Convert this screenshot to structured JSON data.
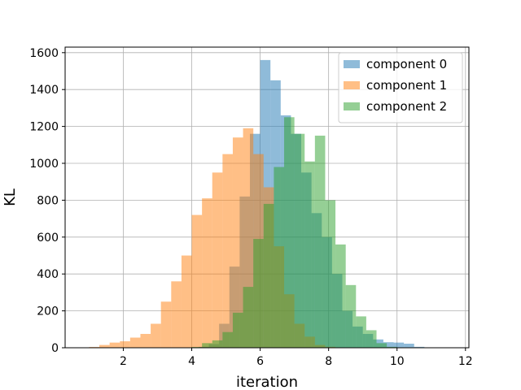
{
  "chart_data": {
    "type": "bar",
    "subtype": "histogram",
    "xlabel": "iteration",
    "ylabel": "KL",
    "xlim": [
      0.3,
      12.1
    ],
    "ylim": [
      0,
      1630
    ],
    "xticks": [
      2,
      4,
      6,
      8,
      10,
      12
    ],
    "yticks": [
      0,
      200,
      400,
      600,
      800,
      1000,
      1200,
      1400,
      1600
    ],
    "grid": true,
    "legend_position": "top-right",
    "series": [
      {
        "name": "component 0",
        "color": "#1f77b4",
        "opacity": 0.5,
        "bins": [
          [
            4.2,
            4.5,
            5
          ],
          [
            4.5,
            4.8,
            20
          ],
          [
            4.8,
            5.1,
            130
          ],
          [
            5.1,
            5.4,
            440
          ],
          [
            5.4,
            5.7,
            820
          ],
          [
            5.7,
            6.0,
            1160
          ],
          [
            6.0,
            6.3,
            1560
          ],
          [
            6.3,
            6.6,
            1450
          ],
          [
            6.6,
            6.9,
            1260
          ],
          [
            6.9,
            7.2,
            1160
          ],
          [
            7.2,
            7.5,
            950
          ],
          [
            7.5,
            7.8,
            730
          ],
          [
            7.8,
            8.1,
            600
          ],
          [
            8.1,
            8.4,
            400
          ],
          [
            8.4,
            8.7,
            200
          ],
          [
            8.7,
            9.0,
            115
          ],
          [
            9.0,
            9.3,
            75
          ],
          [
            9.3,
            9.6,
            45
          ],
          [
            9.6,
            9.9,
            30
          ],
          [
            9.9,
            10.2,
            28
          ],
          [
            10.2,
            10.5,
            22
          ],
          [
            10.5,
            10.8,
            5
          ]
        ]
      },
      {
        "name": "component 1",
        "color": "#ff7f0e",
        "opacity": 0.5,
        "bins": [
          [
            1.0,
            1.3,
            4
          ],
          [
            1.3,
            1.6,
            15
          ],
          [
            1.6,
            1.9,
            28
          ],
          [
            1.9,
            2.2,
            35
          ],
          [
            2.2,
            2.5,
            55
          ],
          [
            2.5,
            2.8,
            75
          ],
          [
            2.8,
            3.1,
            130
          ],
          [
            3.1,
            3.4,
            250
          ],
          [
            3.4,
            3.7,
            360
          ],
          [
            3.7,
            4.0,
            500
          ],
          [
            4.0,
            4.3,
            720
          ],
          [
            4.3,
            4.6,
            810
          ],
          [
            4.6,
            4.9,
            950
          ],
          [
            4.9,
            5.2,
            1050
          ],
          [
            5.2,
            5.5,
            1140
          ],
          [
            5.5,
            5.8,
            1190
          ],
          [
            5.8,
            6.1,
            1050
          ],
          [
            6.1,
            6.4,
            870
          ],
          [
            6.4,
            6.7,
            550
          ],
          [
            6.7,
            7.0,
            290
          ],
          [
            7.0,
            7.3,
            130
          ],
          [
            7.3,
            7.6,
            60
          ],
          [
            7.6,
            7.9,
            15
          ],
          [
            7.9,
            8.2,
            5
          ]
        ]
      },
      {
        "name": "component 2",
        "color": "#2ca02c",
        "opacity": 0.5,
        "bins": [
          [
            4.0,
            4.3,
            4
          ],
          [
            4.3,
            4.6,
            25
          ],
          [
            4.6,
            4.9,
            40
          ],
          [
            4.9,
            5.2,
            85
          ],
          [
            5.2,
            5.5,
            190
          ],
          [
            5.5,
            5.8,
            330
          ],
          [
            5.8,
            6.1,
            590
          ],
          [
            6.1,
            6.4,
            780
          ],
          [
            6.4,
            6.7,
            980
          ],
          [
            6.7,
            7.0,
            1250
          ],
          [
            7.0,
            7.3,
            1160
          ],
          [
            7.3,
            7.6,
            1010
          ],
          [
            7.6,
            7.9,
            1150
          ],
          [
            7.9,
            8.2,
            800
          ],
          [
            8.2,
            8.5,
            560
          ],
          [
            8.5,
            8.8,
            340
          ],
          [
            8.8,
            9.1,
            170
          ],
          [
            9.1,
            9.4,
            95
          ],
          [
            9.4,
            9.7,
            25
          ],
          [
            9.7,
            10.0,
            5
          ]
        ]
      }
    ]
  }
}
